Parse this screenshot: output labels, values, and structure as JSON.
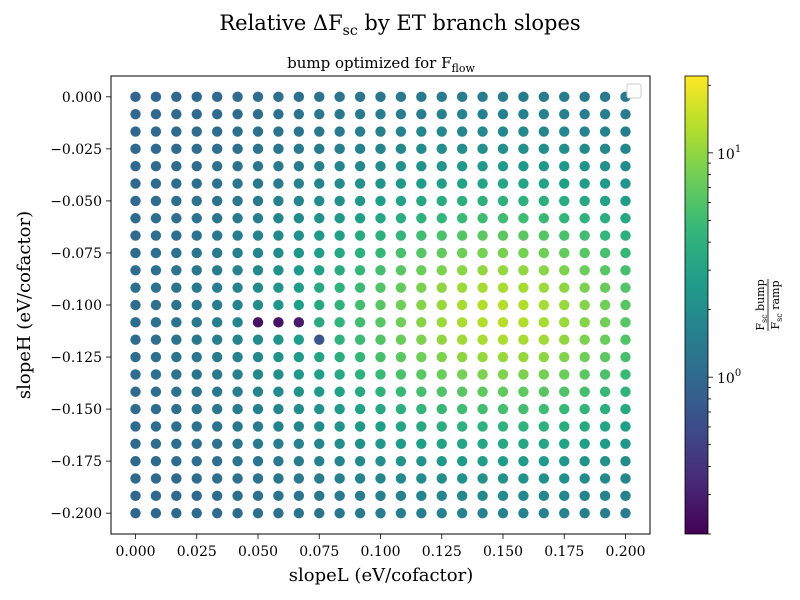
{
  "suptitle": {
    "main": "Relative ΔF",
    "sub": "sc",
    "rest": " by ET branch slopes"
  },
  "subtitle": {
    "main": "bump optimized for F",
    "sub": "flow"
  },
  "chart_data": {
    "type": "scatter",
    "xlabel": "slopeL (eV/cofactor)",
    "ylabel": "slopeH (eV/cofactor)",
    "xlim": [
      -0.01,
      0.21
    ],
    "ylim": [
      -0.21,
      0.01
    ],
    "x_ticks": [
      "0.000",
      "0.025",
      "0.050",
      "0.075",
      "0.100",
      "0.125",
      "0.150",
      "0.175",
      "0.200"
    ],
    "y_ticks": [
      "0.000",
      "−0.025",
      "−0.050",
      "−0.075",
      "−0.100",
      "−0.125",
      "−0.150",
      "−0.175",
      "−0.200"
    ],
    "x_tick_values": [
      0,
      0.025,
      0.05,
      0.075,
      0.1,
      0.125,
      0.15,
      0.175,
      0.2
    ],
    "y_tick_values": [
      0,
      -0.025,
      -0.05,
      -0.075,
      -0.1,
      -0.125,
      -0.15,
      -0.175,
      -0.2
    ],
    "x": [
      0,
      0.00833,
      0.01667,
      0.025,
      0.03333,
      0.04167,
      0.05,
      0.05833,
      0.06667,
      0.075,
      0.08333,
      0.09167,
      0.1,
      0.10833,
      0.11667,
      0.125,
      0.13333,
      0.14167,
      0.15,
      0.15833,
      0.16667,
      0.175,
      0.18333,
      0.19167,
      0.2
    ],
    "y": [
      0,
      -0.00833,
      -0.01667,
      -0.025,
      -0.03333,
      -0.04167,
      -0.05,
      -0.05833,
      -0.06667,
      -0.075,
      -0.08333,
      -0.09167,
      -0.1,
      -0.10833,
      -0.11667,
      -0.125,
      -0.13333,
      -0.14167,
      -0.15,
      -0.15833,
      -0.16667,
      -0.175,
      -0.18333,
      -0.19167,
      -0.2
    ],
    "value_model": {
      "description": "ratio F_sc bump / F_sc ramp at each (slopeL, slopeH) grid point, log color scale",
      "peak": {
        "slopeL": 0.15,
        "slopeH": -0.105,
        "value": 18
      },
      "low_points": [
        [
          0.05,
          -0.10833,
          0.25
        ],
        [
          0.05833,
          -0.10833,
          0.25
        ],
        [
          0.06667,
          -0.10833,
          0.28
        ],
        [
          0.075,
          -0.11667,
          0.7
        ]
      ]
    },
    "colorbar": {
      "scale": "log",
      "range": [
        0.2,
        22
      ],
      "ticks": [
        {
          "value": 1,
          "label_base": "10",
          "label_exp": "0"
        },
        {
          "value": 10,
          "label_base": "10",
          "label_exp": "1"
        }
      ],
      "label": {
        "num_main": "F",
        "num_sub": "sc",
        "num_rest": " bump",
        "den_main": "F",
        "den_sub": "sc",
        "den_rest": " ramp"
      },
      "colormap": "viridis"
    },
    "legend": {
      "placement": "top-right",
      "entries": []
    }
  },
  "colors": {
    "viridis": [
      "#440154",
      "#482878",
      "#3e4989",
      "#31688e",
      "#26828e",
      "#1f9e89",
      "#35b779",
      "#6ece58",
      "#b5de2b",
      "#fde725"
    ]
  }
}
